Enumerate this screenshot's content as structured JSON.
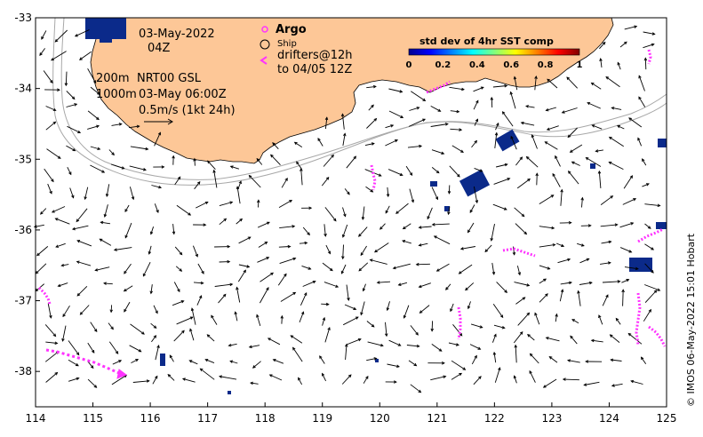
{
  "map": {
    "x_ticks": [
      "114",
      "115",
      "116",
      "117",
      "118",
      "119",
      "120",
      "121",
      "122",
      "123",
      "124",
      "125"
    ],
    "y_ticks": [
      "-33",
      "-34",
      "-35",
      "-36",
      "-37",
      "-38"
    ],
    "x_range": [
      114,
      125
    ],
    "y_range": [
      -33,
      -38.5
    ]
  },
  "annotations": {
    "date": "03-May-2022",
    "time": "04Z",
    "depth_200": "200m",
    "depth_1000": "1000m",
    "model": "NRT00 GSL",
    "model_time": "03-May 06:00Z",
    "scale": "0.5m/s (1kt 24h)"
  },
  "legend": {
    "argo": "Argo",
    "ship": "Ship",
    "drifters_line1": "drifters@12h",
    "drifters_line2": "to 04/05 12Z"
  },
  "colorbar": {
    "title": "std dev of 4hr SST comp",
    "ticks": [
      "0",
      "0.2",
      "0.4",
      "0.6",
      "0.8",
      "1"
    ]
  },
  "credit": "© IMOS 06-May-2022 15:01 Hobart",
  "colors": {
    "land": "#fdc797",
    "contour": "#a8a8a8",
    "drifter": "#ff33ff",
    "sst": "#0b2a8a"
  }
}
